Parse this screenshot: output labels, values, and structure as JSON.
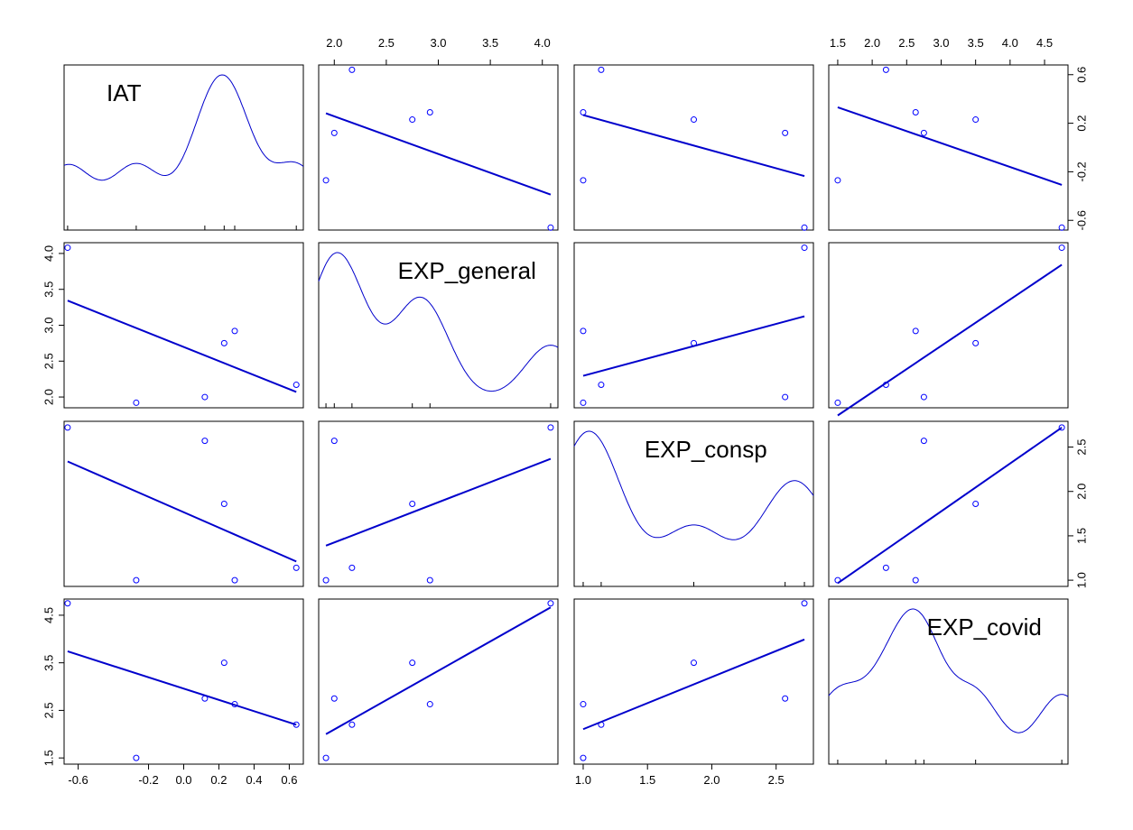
{
  "chart_data": {
    "type": "scatter",
    "variables": [
      {
        "name": "IAT",
        "lim": [
          -0.68,
          0.68
        ],
        "ticks": [
          -0.6,
          -0.2,
          0.0,
          0.2,
          0.4,
          0.6
        ],
        "tick_labels": [
          "-0.6",
          "-0.2",
          "0.0",
          "0.2",
          "0.4",
          "0.6"
        ]
      },
      {
        "name": "EXP_general",
        "lim": [
          1.85,
          4.15
        ],
        "ticks": [
          2.0,
          2.5,
          3.0,
          3.5,
          4.0
        ],
        "tick_labels": [
          "2.0",
          "2.5",
          "3.0",
          "3.5",
          "4.0"
        ]
      },
      {
        "name": "EXP_consp",
        "lim": [
          0.93,
          2.79
        ],
        "ticks": [
          1.0,
          1.5,
          2.0,
          2.5
        ],
        "tick_labels": [
          "1.0",
          "1.5",
          "2.0",
          "2.5"
        ]
      },
      {
        "name": "EXP_covid",
        "lim": [
          1.37,
          4.84
        ],
        "ticks": [
          1.5,
          2.0,
          2.5,
          3.0,
          3.5,
          4.0,
          4.5
        ],
        "tick_labels": [
          "1.5",
          "2.0",
          "2.5",
          "3.0",
          "3.5",
          "4.0",
          "4.5"
        ]
      }
    ],
    "left_tick_labels_by_row": [
      [],
      [
        "2.0",
        "2.5",
        "3.0",
        "3.5",
        "4.0"
      ],
      [],
      [
        "1.5",
        "2.5",
        "3.5",
        "4.5"
      ]
    ],
    "right_tick_labels_by_row": [
      [
        "-0.6",
        "-0.2",
        "0.2",
        "0.6"
      ],
      [],
      [
        "1.0",
        "1.5",
        "2.0",
        "2.5"
      ],
      []
    ],
    "bottom_tick_labels_by_col": [
      [
        "-0.6",
        "-0.2",
        "0.0",
        "0.2",
        "0.4",
        "0.6"
      ],
      [],
      [
        "1.0",
        "1.5",
        "2.0",
        "2.5"
      ],
      []
    ],
    "top_tick_labels_by_col": [
      [],
      [
        "2.0",
        "2.5",
        "3.0",
        "3.5",
        "4.0"
      ],
      [],
      [
        "1.5",
        "2.0",
        "2.5",
        "3.0",
        "3.5",
        "4.0",
        "4.5"
      ]
    ],
    "observations": [
      {
        "IAT": -0.66,
        "EXP_general": 4.08,
        "EXP_consp": 2.72,
        "EXP_covid": 4.75
      },
      {
        "IAT": -0.27,
        "EXP_general": 1.92,
        "EXP_consp": 1.0,
        "EXP_covid": 1.5
      },
      {
        "IAT": 0.12,
        "EXP_general": 2.0,
        "EXP_consp": 2.57,
        "EXP_covid": 2.75
      },
      {
        "IAT": 0.23,
        "EXP_general": 2.75,
        "EXP_consp": 1.86,
        "EXP_covid": 3.5
      },
      {
        "IAT": 0.29,
        "EXP_general": 2.92,
        "EXP_consp": 1.0,
        "EXP_covid": 2.63
      },
      {
        "IAT": 0.64,
        "EXP_general": 2.17,
        "EXP_consp": 1.14,
        "EXP_covid": 2.2
      }
    ],
    "regression_lines": "least squares per panel",
    "diagonal": "density curve per variable",
    "colors": {
      "points": "#0000ff",
      "lines": "#0000cc",
      "density": "#0000cc",
      "frame": "#000000"
    },
    "grid": false
  }
}
